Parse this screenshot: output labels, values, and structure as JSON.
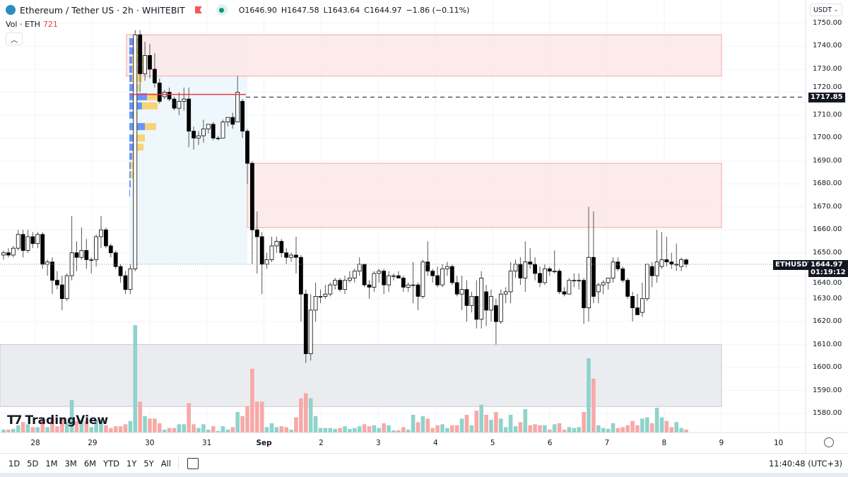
{
  "header": {
    "symbol": "Ethereum / Tether US · 2h · WHITEBIT",
    "open": "O1646.90",
    "high": "H1647.58",
    "low": "L1643.64",
    "close": "C1644.97",
    "change": "−1.86 (−0.11%)"
  },
  "volume_legend": {
    "label": "Vol · ETH",
    "value": "721"
  },
  "currency": "USDT",
  "brand": "TradingView",
  "price_tags": {
    "level": "1717.85",
    "symbol": "ETHUSDT",
    "last": "1644.97",
    "countdown": "01:19:12"
  },
  "range_buttons": [
    "1D",
    "5D",
    "1M",
    "3M",
    "6M",
    "YTD",
    "1Y",
    "5Y",
    "All"
  ],
  "clock": "11:40:48 (UTC+3)",
  "colors": {
    "up_volume": "#8fd3cb",
    "down_volume": "#f7a9a7",
    "supply_zone": "#fde8e8",
    "support_zone": "#ebecf0",
    "range_box": "#eef7fc",
    "level_line": "#f23645"
  },
  "chart_data": {
    "type": "candlestick",
    "title": "",
    "ylim": [
      1573,
      1753
    ],
    "y_ticks": [
      "1750.00",
      "1740.00",
      "1730.00",
      "1720.00",
      "1710.00",
      "1700.00",
      "1690.00",
      "1680.00",
      "1670.00",
      "1660.00",
      "1650.00",
      "1640.00",
      "1630.00",
      "1620.00",
      "1610.00",
      "1600.00",
      "1590.00",
      "1580.00"
    ],
    "x_ticks": [
      "28",
      "29",
      "30",
      "31",
      "Sep",
      "2",
      "3",
      "4",
      "5",
      "6",
      "7",
      "8",
      "9",
      "10"
    ],
    "zones": [
      {
        "name": "supply-zone-upper",
        "from": 1727,
        "to": 1745
      },
      {
        "name": "supply-zone-lower",
        "from": 1661,
        "to": 1689
      },
      {
        "name": "support-zone",
        "from": 1583,
        "to": 1610
      }
    ],
    "level": 1717.85,
    "last": 1644.97,
    "candles": [
      [
        1649,
        1651,
        1647,
        1650
      ],
      [
        1650,
        1652,
        1648,
        1649
      ],
      [
        1649,
        1653,
        1648,
        1652
      ],
      [
        1652,
        1660,
        1651,
        1658
      ],
      [
        1658,
        1660,
        1648,
        1651
      ],
      [
        1651,
        1660,
        1650,
        1657
      ],
      [
        1657,
        1659,
        1652,
        1654
      ],
      [
        1654,
        1659,
        1652,
        1658
      ],
      [
        1658,
        1659,
        1643,
        1645
      ],
      [
        1645,
        1647,
        1640,
        1646
      ],
      [
        1646,
        1648,
        1632,
        1638
      ],
      [
        1638,
        1642,
        1634,
        1636
      ],
      [
        1636,
        1640,
        1625,
        1630
      ],
      [
        1630,
        1641,
        1629,
        1640
      ],
      [
        1640,
        1666,
        1638,
        1650
      ],
      [
        1650,
        1655,
        1642,
        1648
      ],
      [
        1648,
        1661,
        1647,
        1651
      ],
      [
        1651,
        1656,
        1643,
        1647
      ],
      [
        1647,
        1648,
        1641,
        1647
      ],
      [
        1647,
        1658,
        1644,
        1657
      ],
      [
        1657,
        1666,
        1652,
        1660
      ],
      [
        1660,
        1661,
        1652,
        1653
      ],
      [
        1653,
        1654,
        1648,
        1650
      ],
      [
        1650,
        1651,
        1643,
        1644
      ],
      [
        1644,
        1645,
        1637,
        1640
      ],
      [
        1640,
        1642,
        1632,
        1634
      ],
      [
        1634,
        1645,
        1632,
        1643
      ],
      [
        1643,
        1747,
        1642,
        1745
      ],
      [
        1745,
        1747,
        1720,
        1728
      ],
      [
        1728,
        1742,
        1725,
        1736
      ],
      [
        1736,
        1741,
        1726,
        1730
      ],
      [
        1730,
        1737,
        1722,
        1724
      ],
      [
        1724,
        1726,
        1715,
        1716
      ],
      [
        1718,
        1721,
        1717,
        1720
      ],
      [
        1720,
        1722,
        1716,
        1717
      ],
      [
        1717,
        1718,
        1712,
        1713
      ],
      [
        1713,
        1720,
        1710,
        1716
      ],
      [
        1716,
        1722,
        1712,
        1717
      ],
      [
        1717,
        1722,
        1696,
        1703
      ],
      [
        1703,
        1705,
        1695,
        1700
      ],
      [
        1700,
        1703,
        1697,
        1701
      ],
      [
        1701,
        1708,
        1698,
        1704
      ],
      [
        1704,
        1706,
        1702,
        1706
      ],
      [
        1706,
        1707,
        1699,
        1700
      ],
      [
        1700,
        1701,
        1699,
        1700
      ],
      [
        1700,
        1708,
        1700,
        1707
      ],
      [
        1707,
        1709,
        1705,
        1709
      ],
      [
        1709,
        1711,
        1704,
        1706
      ],
      [
        1707,
        1727,
        1707,
        1720
      ],
      [
        1716,
        1717,
        1700,
        1703
      ],
      [
        1703,
        1704,
        1680,
        1689
      ],
      [
        1689,
        1690,
        1645,
        1660
      ],
      [
        1660,
        1668,
        1641,
        1657
      ],
      [
        1657,
        1659,
        1632,
        1645
      ],
      [
        1645,
        1650,
        1643,
        1647
      ],
      [
        1647,
        1657,
        1646,
        1653
      ],
      [
        1653,
        1657,
        1650,
        1655
      ],
      [
        1655,
        1656,
        1648,
        1650
      ],
      [
        1650,
        1652,
        1645,
        1648
      ],
      [
        1648,
        1650,
        1646,
        1649
      ],
      [
        1649,
        1657,
        1641,
        1648
      ],
      [
        1648,
        1649,
        1620,
        1632
      ],
      [
        1632,
        1634,
        1602,
        1606
      ],
      [
        1606,
        1632,
        1603,
        1625
      ],
      [
        1625,
        1637,
        1620,
        1631
      ],
      [
        1631,
        1634,
        1628,
        1631
      ],
      [
        1631,
        1636,
        1630,
        1632
      ],
      [
        1632,
        1637,
        1631,
        1636
      ],
      [
        1636,
        1639,
        1634,
        1638
      ],
      [
        1638,
        1639,
        1633,
        1634
      ],
      [
        1634,
        1640,
        1632,
        1638
      ],
      [
        1638,
        1642,
        1637,
        1639
      ],
      [
        1639,
        1643,
        1637,
        1642
      ],
      [
        1642,
        1648,
        1640,
        1645
      ],
      [
        1645,
        1645,
        1635,
        1636
      ],
      [
        1636,
        1638,
        1630,
        1635
      ],
      [
        1635,
        1642,
        1633,
        1641
      ],
      [
        1641,
        1643,
        1637,
        1642
      ],
      [
        1642,
        1643,
        1632,
        1636
      ],
      [
        1636,
        1642,
        1633,
        1640
      ],
      [
        1640,
        1641,
        1638,
        1640
      ],
      [
        1640,
        1642,
        1639,
        1639
      ],
      [
        1639,
        1640,
        1633,
        1635
      ],
      [
        1635,
        1637,
        1633,
        1636
      ],
      [
        1636,
        1646,
        1628,
        1636
      ],
      [
        1636,
        1637,
        1625,
        1631
      ],
      [
        1631,
        1647,
        1630,
        1646
      ],
      [
        1646,
        1655,
        1640,
        1642
      ],
      [
        1642,
        1643,
        1637,
        1640
      ],
      [
        1640,
        1644,
        1635,
        1636
      ],
      [
        1636,
        1645,
        1635,
        1643
      ],
      [
        1643,
        1646,
        1640,
        1644
      ],
      [
        1644,
        1645,
        1636,
        1637
      ],
      [
        1637,
        1640,
        1631,
        1632
      ],
      [
        1632,
        1640,
        1625,
        1634
      ],
      [
        1634,
        1638,
        1620,
        1627
      ],
      [
        1627,
        1633,
        1624,
        1631
      ],
      [
        1631,
        1638,
        1617,
        1621
      ],
      [
        1621,
        1642,
        1617,
        1639
      ],
      [
        1633,
        1636,
        1618,
        1625
      ],
      [
        1625,
        1634,
        1620,
        1631
      ],
      [
        1627,
        1630,
        1610,
        1620
      ],
      [
        1620,
        1634,
        1619,
        1632
      ],
      [
        1632,
        1635,
        1628,
        1633
      ],
      [
        1633,
        1646,
        1628,
        1642
      ],
      [
        1642,
        1647,
        1639,
        1645
      ],
      [
        1645,
        1648,
        1636,
        1639
      ],
      [
        1639,
        1655,
        1633,
        1646
      ],
      [
        1646,
        1652,
        1643,
        1645
      ],
      [
        1645,
        1648,
        1638,
        1641
      ],
      [
        1641,
        1644,
        1635,
        1637
      ],
      [
        1637,
        1645,
        1636,
        1643
      ],
      [
        1643,
        1644,
        1640,
        1642
      ],
      [
        1642,
        1651,
        1641,
        1642
      ],
      [
        1642,
        1643,
        1632,
        1633
      ],
      [
        1633,
        1635,
        1631,
        1632
      ],
      [
        1632,
        1639,
        1632,
        1638
      ],
      [
        1638,
        1641,
        1635,
        1638
      ],
      [
        1638,
        1641,
        1634,
        1638
      ],
      [
        1638,
        1639,
        1619,
        1626
      ],
      [
        1626,
        1670,
        1620,
        1648
      ],
      [
        1648,
        1668,
        1628,
        1631
      ],
      [
        1633,
        1637,
        1628,
        1636
      ],
      [
        1636,
        1638,
        1632,
        1637
      ],
      [
        1637,
        1639,
        1634,
        1639
      ],
      [
        1639,
        1648,
        1637,
        1646
      ],
      [
        1646,
        1648,
        1642,
        1643
      ],
      [
        1643,
        1644,
        1637,
        1638
      ],
      [
        1638,
        1639,
        1630,
        1631
      ],
      [
        1631,
        1633,
        1620,
        1626
      ],
      [
        1626,
        1632,
        1623,
        1623
      ],
      [
        1624,
        1637,
        1622,
        1630
      ],
      [
        1630,
        1645,
        1629,
        1645
      ],
      [
        1644,
        1646,
        1635,
        1640
      ],
      [
        1640,
        1660,
        1637,
        1646
      ],
      [
        1644,
        1659,
        1643,
        1647
      ],
      [
        1647,
        1657,
        1644,
        1646
      ],
      [
        1646,
        1650,
        1643,
        1645
      ],
      [
        1645,
        1654,
        1642,
        1645
      ],
      [
        1644,
        1648,
        1642,
        1647
      ],
      [
        1646.9,
        1647.58,
        1643.64,
        1644.97
      ]
    ]
  }
}
